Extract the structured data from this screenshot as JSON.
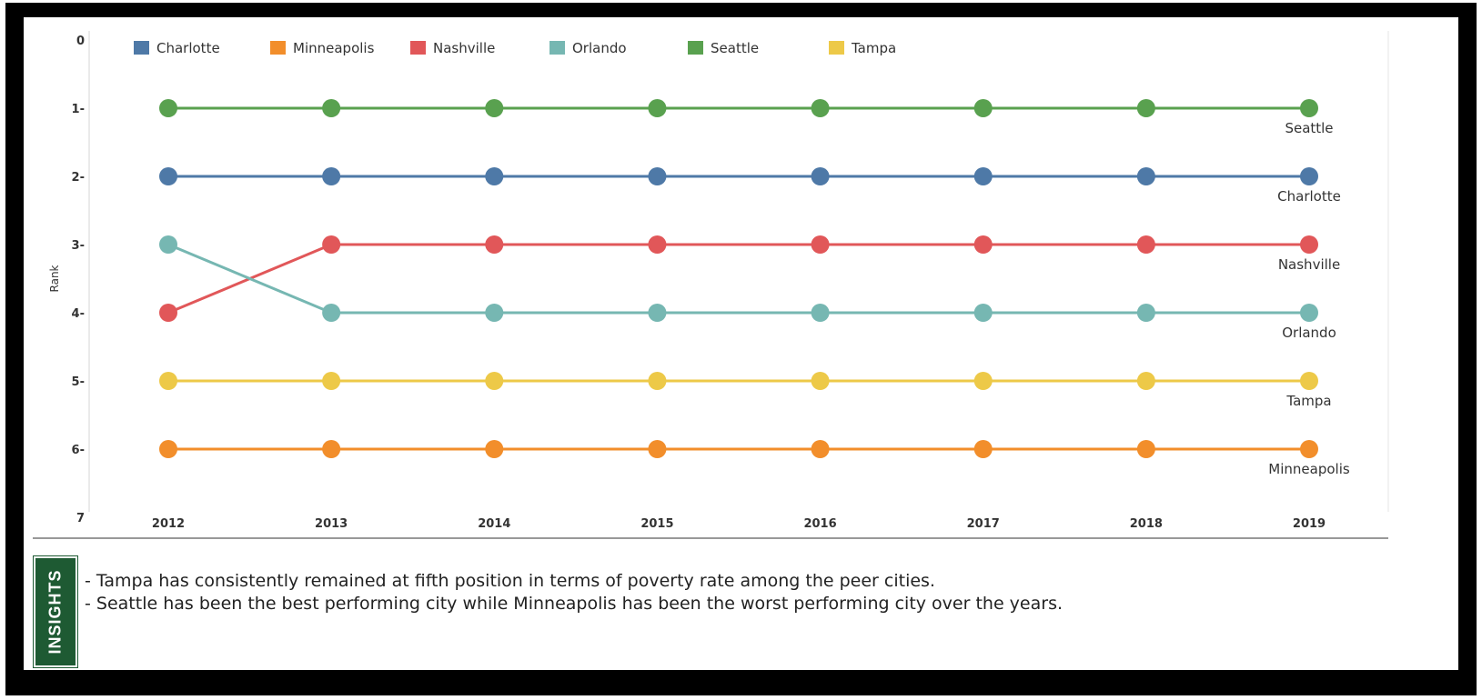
{
  "chart_data": {
    "type": "line",
    "title": "",
    "xlabel": "",
    "ylabel": "Rank",
    "x": [
      "2012",
      "2013",
      "2014",
      "2015",
      "2016",
      "2017",
      "2018",
      "2019"
    ],
    "ylim": [
      0,
      7
    ],
    "y_reversed": true,
    "y_ticks": [
      "0",
      "1-",
      "2-",
      "3-",
      "4-",
      "5-",
      "6-",
      "7"
    ],
    "legend_position": "top-left",
    "end_labels": true,
    "series": [
      {
        "name": "Charlotte",
        "color": "#4e79a7",
        "values": [
          2,
          2,
          2,
          2,
          2,
          2,
          2,
          2
        ]
      },
      {
        "name": "Minneapolis",
        "color": "#f28e2b",
        "values": [
          6,
          6,
          6,
          6,
          6,
          6,
          6,
          6
        ]
      },
      {
        "name": "Nashville",
        "color": "#e15759",
        "values": [
          4,
          3,
          3,
          3,
          3,
          3,
          3,
          3
        ]
      },
      {
        "name": "Orlando",
        "color": "#76b7b2",
        "values": [
          3,
          4,
          4,
          4,
          4,
          4,
          4,
          4
        ]
      },
      {
        "name": "Seattle",
        "color": "#59a14f",
        "values": [
          1,
          1,
          1,
          1,
          1,
          1,
          1,
          1
        ]
      },
      {
        "name": "Tampa",
        "color": "#edc948",
        "values": [
          5,
          5,
          5,
          5,
          5,
          5,
          5,
          5
        ]
      }
    ]
  },
  "insights": {
    "label": "INSIGHTS",
    "lines": [
      "- Tampa has consistently remained at fifth position in terms of poverty rate among the peer cities.",
      "- Seattle has been the best performing city while Minneapolis has been the worst performing city over the years."
    ]
  }
}
